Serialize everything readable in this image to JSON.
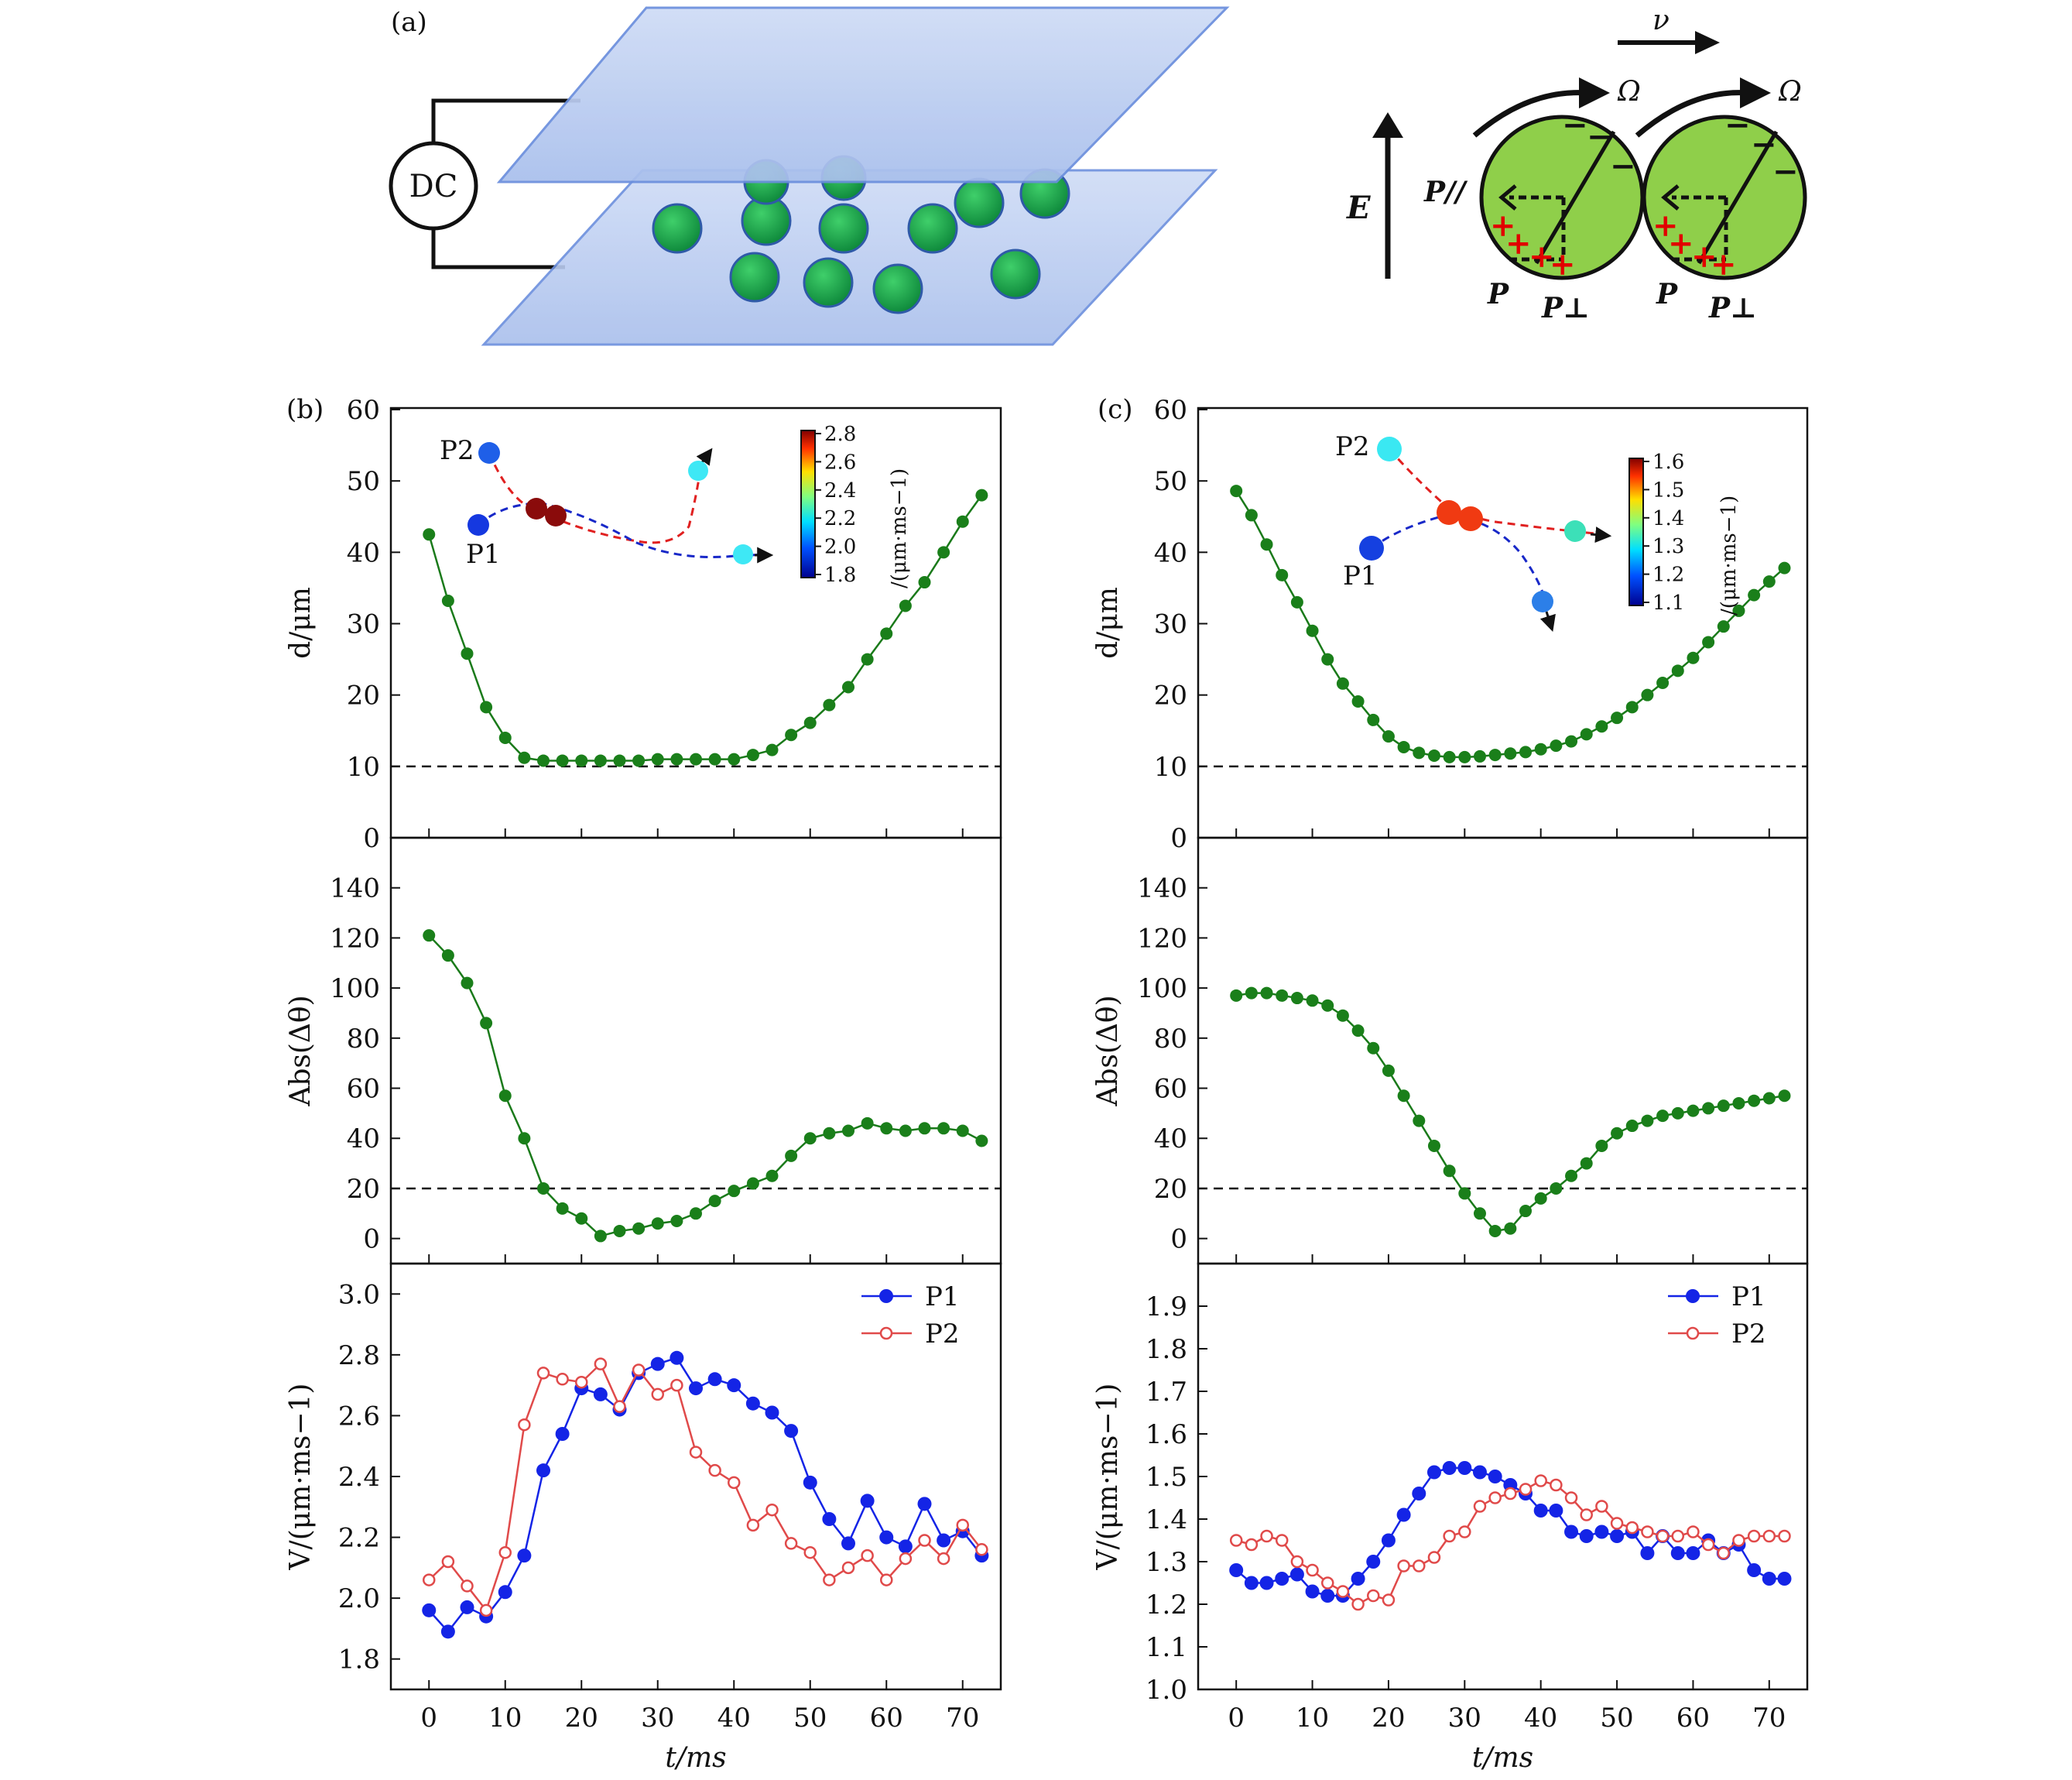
{
  "panel_labels": {
    "a": "(a)",
    "b": "(b)",
    "c": "(c)"
  },
  "schematic": {
    "dc_label": "DC",
    "field_label": "E",
    "velocity_label": "ν",
    "omega_label": "Ω",
    "p_parallel_label": "P//",
    "p_label": "P",
    "p_perp_label": "P⊥"
  },
  "colors": {
    "green_line": "#1a7a1a",
    "green_dot": "#1a7f1a",
    "p1": "#1424e6",
    "p2": "#e04a4a",
    "sphere": "#8fcf4a",
    "plate": "#b8ccf0"
  },
  "chart_data": [
    {
      "id": "b-top",
      "type": "line",
      "panel": "(b)",
      "xlabel": "t/ms",
      "ylabel": "d/μm",
      "xlim": [
        -5,
        75
      ],
      "ylim": [
        0,
        60
      ],
      "yticks": [
        0,
        10,
        20,
        30,
        40,
        50,
        60
      ],
      "threshold": 10,
      "series": [
        {
          "name": "d",
          "x": [
            0,
            2.5,
            5,
            7.5,
            10,
            12.5,
            15,
            17.5,
            20,
            22.5,
            25,
            27.5,
            30,
            32.5,
            35,
            37.5,
            40,
            42.5,
            45,
            47.5,
            50,
            52.5,
            55,
            57.5,
            60,
            62.5,
            65,
            67.5,
            70,
            72.5
          ],
          "y": [
            42.5,
            33.2,
            25.8,
            18.3,
            14,
            11.2,
            10.8,
            10.8,
            10.8,
            10.8,
            10.8,
            10.8,
            11,
            11,
            11,
            11,
            11,
            11.6,
            12.3,
            14.4,
            16.1,
            18.6,
            21.1,
            25.0,
            28.6,
            32.5,
            35.8,
            40.0,
            44.3,
            48.0
          ]
        }
      ],
      "inset": {
        "cbar_ticks": [
          "1.8",
          "2.0",
          "2.2",
          "2.4",
          "2.6",
          "2.8"
        ],
        "cbar_label": "/(μm·ms−1)",
        "p1": "P1",
        "p2": "P2"
      }
    },
    {
      "id": "b-mid",
      "type": "line",
      "panel": "(b)",
      "xlabel": "t/ms",
      "ylabel": "Abs(Δθ)",
      "xlim": [
        -5,
        75
      ],
      "ylim": [
        -10,
        160
      ],
      "yticks": [
        0,
        20,
        40,
        60,
        80,
        100,
        120,
        140
      ],
      "threshold": 20,
      "series": [
        {
          "name": "Abs(Δθ)",
          "x": [
            0,
            2.5,
            5,
            7.5,
            10,
            12.5,
            15,
            17.5,
            20,
            22.5,
            25,
            27.5,
            30,
            32.5,
            35,
            37.5,
            40,
            42.5,
            45,
            47.5,
            50,
            52.5,
            55,
            57.5,
            60,
            62.5,
            65,
            67.5,
            70,
            72.5
          ],
          "y": [
            121,
            113,
            102,
            86,
            57,
            40,
            20,
            12,
            8,
            1,
            3,
            4,
            6,
            7,
            10,
            15,
            19,
            22,
            25,
            33,
            40,
            42,
            43,
            46,
            44,
            43,
            44,
            44,
            43,
            39
          ]
        }
      ]
    },
    {
      "id": "b-bot",
      "type": "line",
      "panel": "(b)",
      "xlabel": "t/ms",
      "ylabel": "V/(μm·ms−1)",
      "xlim": [
        -5,
        75
      ],
      "ylim": [
        1.7,
        3.1
      ],
      "yticks": [
        1.8,
        2.0,
        2.2,
        2.4,
        2.6,
        2.8,
        3.0
      ],
      "xticks": [
        0,
        10,
        20,
        30,
        40,
        50,
        60,
        70
      ],
      "legend": [
        "P1",
        "P2"
      ],
      "series": [
        {
          "name": "P1",
          "x": [
            0,
            2.5,
            5,
            7.5,
            10,
            12.5,
            15,
            17.5,
            20,
            22.5,
            25,
            27.5,
            30,
            32.5,
            35,
            37.5,
            40,
            42.5,
            45,
            47.5,
            50,
            52.5,
            55,
            57.5,
            60,
            62.5,
            65,
            67.5,
            70,
            72.5
          ],
          "y": [
            1.96,
            1.89,
            1.97,
            1.94,
            2.02,
            2.14,
            2.42,
            2.54,
            2.69,
            2.67,
            2.62,
            2.74,
            2.77,
            2.79,
            2.69,
            2.72,
            2.7,
            2.64,
            2.61,
            2.55,
            2.38,
            2.26,
            2.18,
            2.32,
            2.2,
            2.17,
            2.31,
            2.19,
            2.22,
            2.14
          ]
        },
        {
          "name": "P2",
          "x": [
            0,
            2.5,
            5,
            7.5,
            10,
            12.5,
            15,
            17.5,
            20,
            22.5,
            25,
            27.5,
            30,
            32.5,
            35,
            37.5,
            40,
            42.5,
            45,
            47.5,
            50,
            52.5,
            55,
            57.5,
            60,
            62.5,
            65,
            67.5,
            70,
            72.5
          ],
          "y": [
            2.06,
            2.12,
            2.04,
            1.96,
            2.15,
            2.57,
            2.74,
            2.72,
            2.71,
            2.77,
            2.63,
            2.75,
            2.67,
            2.7,
            2.48,
            2.42,
            2.38,
            2.24,
            2.29,
            2.18,
            2.15,
            2.06,
            2.1,
            2.14,
            2.06,
            2.13,
            2.19,
            2.13,
            2.24,
            2.16
          ]
        }
      ]
    },
    {
      "id": "c-top",
      "type": "line",
      "panel": "(c)",
      "xlabel": "t/ms",
      "ylabel": "d/μm",
      "xlim": [
        -5,
        75
      ],
      "ylim": [
        0,
        60
      ],
      "yticks": [
        0,
        10,
        20,
        30,
        40,
        50,
        60
      ],
      "threshold": 10,
      "series": [
        {
          "name": "d",
          "x": [
            0,
            2,
            4,
            6,
            8,
            10,
            12,
            14,
            16,
            18,
            20,
            22,
            24,
            26,
            28,
            30,
            32,
            34,
            36,
            38,
            40,
            42,
            44,
            46,
            48,
            50,
            52,
            54,
            56,
            58,
            60,
            62,
            64,
            66,
            68,
            70,
            72
          ],
          "y": [
            48.6,
            45.2,
            41.1,
            36.8,
            33.0,
            29.0,
            25.0,
            21.6,
            19.1,
            16.5,
            14.2,
            12.7,
            11.9,
            11.5,
            11.3,
            11.3,
            11.4,
            11.6,
            11.8,
            12.0,
            12.4,
            12.9,
            13.5,
            14.5,
            15.6,
            16.8,
            18.3,
            20.0,
            21.7,
            23.4,
            25.2,
            27.4,
            29.6,
            31.8,
            34.0,
            35.9,
            37.8
          ]
        }
      ],
      "inset": {
        "cbar_ticks": [
          "1.1",
          "1.2",
          "1.3",
          "1.4",
          "1.5",
          "1.6"
        ],
        "cbar_label": "/(μm·ms−1)",
        "p1": "P1",
        "p2": "P2"
      }
    },
    {
      "id": "c-mid",
      "type": "line",
      "panel": "(c)",
      "xlabel": "t/ms",
      "ylabel": "Abs(Δθ)",
      "xlim": [
        -5,
        75
      ],
      "ylim": [
        -10,
        160
      ],
      "yticks": [
        0,
        20,
        40,
        60,
        80,
        100,
        120,
        140
      ],
      "threshold": 20,
      "series": [
        {
          "name": "Abs(Δθ)",
          "x": [
            0,
            2,
            4,
            6,
            8,
            10,
            12,
            14,
            16,
            18,
            20,
            22,
            24,
            26,
            28,
            30,
            32,
            34,
            36,
            38,
            40,
            42,
            44,
            46,
            48,
            50,
            52,
            54,
            56,
            58,
            60,
            62,
            64,
            66,
            68,
            70,
            72
          ],
          "y": [
            97,
            98,
            98,
            97,
            96,
            95,
            93,
            89,
            83,
            76,
            67,
            57,
            47,
            37,
            27,
            18,
            10,
            3,
            4,
            11,
            16,
            20,
            25,
            30,
            37,
            42,
            45,
            47,
            49,
            50,
            51,
            52,
            53,
            54,
            55,
            56,
            57
          ]
        }
      ]
    },
    {
      "id": "c-bot",
      "type": "line",
      "panel": "(c)",
      "xlabel": "t/ms",
      "ylabel": "V/(μm·ms−1)",
      "xlim": [
        -5,
        75
      ],
      "ylim": [
        1.0,
        2.0
      ],
      "yticks": [
        1.0,
        1.1,
        1.2,
        1.3,
        1.4,
        1.5,
        1.6,
        1.7,
        1.8,
        1.9
      ],
      "xticks": [
        0,
        10,
        20,
        30,
        40,
        50,
        60,
        70
      ],
      "legend": [
        "P1",
        "P2"
      ],
      "series": [
        {
          "name": "P1",
          "x": [
            0,
            2,
            4,
            6,
            8,
            10,
            12,
            14,
            16,
            18,
            20,
            22,
            24,
            26,
            28,
            30,
            32,
            34,
            36,
            38,
            40,
            42,
            44,
            46,
            48,
            50,
            52,
            54,
            56,
            58,
            60,
            62,
            64,
            66,
            68,
            70,
            72
          ],
          "y": [
            1.28,
            1.25,
            1.25,
            1.26,
            1.27,
            1.23,
            1.22,
            1.22,
            1.26,
            1.3,
            1.35,
            1.41,
            1.46,
            1.51,
            1.52,
            1.52,
            1.51,
            1.5,
            1.48,
            1.46,
            1.42,
            1.42,
            1.37,
            1.36,
            1.37,
            1.36,
            1.37,
            1.32,
            1.36,
            1.32,
            1.32,
            1.35,
            1.32,
            1.34,
            1.28,
            1.26,
            1.26
          ]
        },
        {
          "name": "P2",
          "x": [
            0,
            2,
            4,
            6,
            8,
            10,
            12,
            14,
            16,
            18,
            20,
            22,
            24,
            26,
            28,
            30,
            32,
            34,
            36,
            38,
            40,
            42,
            44,
            46,
            48,
            50,
            52,
            54,
            56,
            58,
            60,
            62,
            64,
            66,
            68,
            70,
            72
          ],
          "y": [
            1.35,
            1.34,
            1.36,
            1.35,
            1.3,
            1.28,
            1.25,
            1.23,
            1.2,
            1.22,
            1.21,
            1.29,
            1.29,
            1.31,
            1.36,
            1.37,
            1.43,
            1.45,
            1.46,
            1.47,
            1.49,
            1.48,
            1.45,
            1.41,
            1.43,
            1.39,
            1.38,
            1.37,
            1.36,
            1.36,
            1.37,
            1.34,
            1.32,
            1.35,
            1.36,
            1.36,
            1.36
          ]
        }
      ]
    }
  ]
}
